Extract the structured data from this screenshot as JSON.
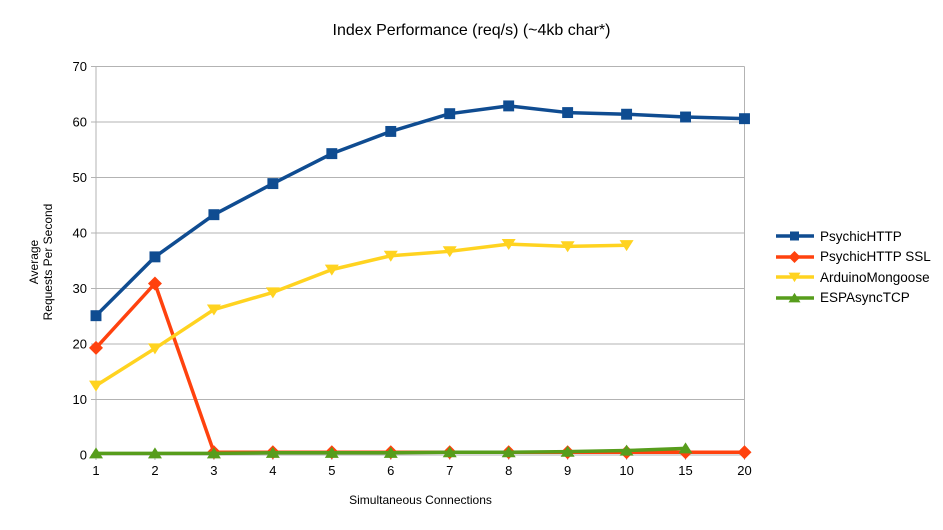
{
  "chart_data": {
    "type": "line",
    "title": "Index Performance (req/s) (~4kb char*)",
    "xlabel": "Simultaneous Connections",
    "ylabel": "Average Requests Per Second",
    "ylabel_lines": [
      "Average",
      "Requests Per Second"
    ],
    "categories": [
      "1",
      "2",
      "3",
      "4",
      "5",
      "6",
      "7",
      "8",
      "9",
      "10",
      "15",
      "20"
    ],
    "ylim": [
      0,
      70
    ],
    "y_tick_step": 10,
    "grid": true,
    "legend_position": "right",
    "colors": {
      "grid": "#b3b3b3",
      "text": "#000000"
    },
    "series": [
      {
        "name": "PsychicHTTP",
        "color": "#0f4c91",
        "marker": "square",
        "values": [
          25.1,
          35.7,
          43.3,
          48.9,
          54.3,
          58.3,
          61.5,
          62.9,
          61.7,
          61.4,
          60.9,
          60.6
        ]
      },
      {
        "name": "PsychicHTTP SSL",
        "color": "#ff420e",
        "marker": "diamond",
        "values": [
          19.3,
          30.9,
          0.5,
          0.5,
          0.5,
          0.5,
          0.5,
          0.5,
          0.5,
          0.5,
          0.5,
          0.5
        ]
      },
      {
        "name": "ArduinoMongoose",
        "color": "#ffd320",
        "marker": "triangle-down",
        "values": [
          12.5,
          19.2,
          26.2,
          29.3,
          33.4,
          35.9,
          36.7,
          38.0,
          37.6,
          37.8,
          null,
          null
        ]
      },
      {
        "name": "ESPAsyncTCP",
        "color": "#579d1c",
        "marker": "triangle-up",
        "values": [
          0.3,
          0.3,
          0.3,
          0.4,
          0.4,
          0.4,
          0.5,
          0.5,
          0.6,
          0.8,
          1.2,
          null
        ]
      }
    ]
  }
}
